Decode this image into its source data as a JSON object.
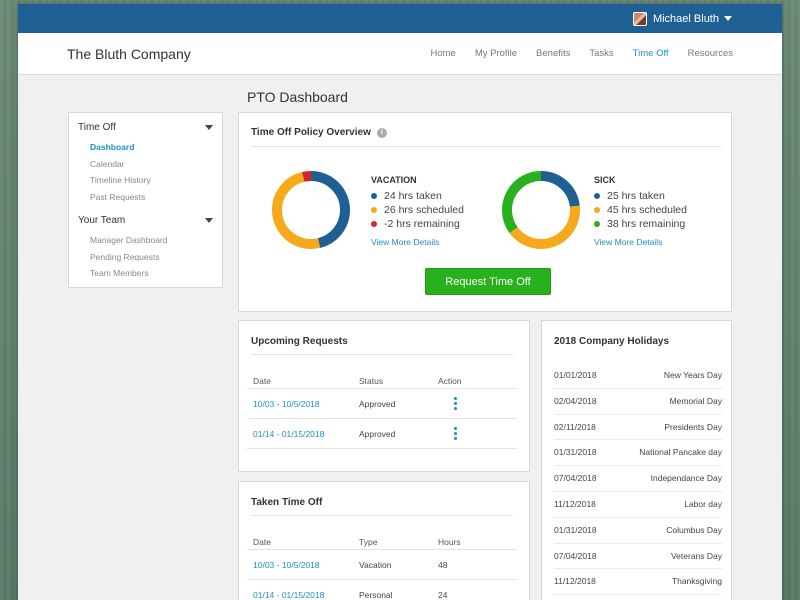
{
  "topbar": {
    "user_name": "Michael Bluth"
  },
  "brand": "The Bluth Company",
  "nav": [
    "Home",
    "My Profile",
    "Benefits",
    "Tasks",
    "Time Off",
    "Resources"
  ],
  "nav_active": "Time Off",
  "page_title": "PTO Dashboard",
  "sidebar": {
    "sections": [
      {
        "label": "Time Off",
        "items": [
          "Dashboard",
          "Calendar",
          "Timeline History",
          "Past Requests"
        ]
      },
      {
        "label": "Your Team",
        "items": [
          "Manager Dashboard",
          "Pending Requests",
          "Team Members"
        ]
      }
    ],
    "active_item": "Dashboard"
  },
  "policy": {
    "title": "Time Off Policy Overview",
    "info_icon": "i",
    "vacation": {
      "title": "VACATION",
      "items": [
        {
          "text": "24 hrs taken",
          "color": "#1f6094",
          "hours": 24
        },
        {
          "text": "26 hrs scheduled",
          "color": "#f6a91b",
          "hours": 26
        },
        {
          "text": "-2 hrs remaining",
          "color": "#d7242c",
          "hours": 2
        }
      ],
      "more": "View More Details"
    },
    "sick": {
      "title": "SICK",
      "items": [
        {
          "text": "25 hrs taken",
          "color": "#1f6094",
          "hours": 25
        },
        {
          "text": "45 hrs scheduled",
          "color": "#f6a91b",
          "hours": 45
        },
        {
          "text": "38 hrs remaining",
          "color": "#28b11c",
          "hours": 38
        }
      ],
      "more": "View More Details"
    },
    "button": "Request Time Off"
  },
  "upcoming": {
    "title": "Upcoming Requests",
    "headers": [
      "Date",
      "Status",
      "Action"
    ],
    "rows": [
      {
        "date": "10/03 - 10/5/2018",
        "status": "Approved"
      },
      {
        "date": "01/14 - 01/15/2018",
        "status": "Approved"
      }
    ]
  },
  "taken": {
    "title": "Taken Time Off",
    "headers": [
      "Date",
      "Type",
      "Hours"
    ],
    "rows": [
      {
        "date": "10/03 - 10/5/2018",
        "type": "Vacation",
        "hours": "48"
      },
      {
        "date": "01/14 - 01/15/2018",
        "type": "Personal",
        "hours": "24"
      }
    ]
  },
  "holidays": {
    "title": "2018 Company Holidays",
    "rows": [
      {
        "date": "01/01/2018",
        "name": "New Years Day"
      },
      {
        "date": "02/04/2018",
        "name": "Memorial Day"
      },
      {
        "date": "02/11/2018",
        "name": "Presidents Day"
      },
      {
        "date": "01/31/2018",
        "name": "National Pancake day"
      },
      {
        "date": "07/04/2018",
        "name": "Independance Day"
      },
      {
        "date": "11/12/2018",
        "name": "Labor day"
      },
      {
        "date": "01/31/2018",
        "name": "Columbus Day"
      },
      {
        "date": "07/04/2018",
        "name": "Veterans Day"
      },
      {
        "date": "11/12/2018",
        "name": "Thanksgiving"
      }
    ]
  }
}
